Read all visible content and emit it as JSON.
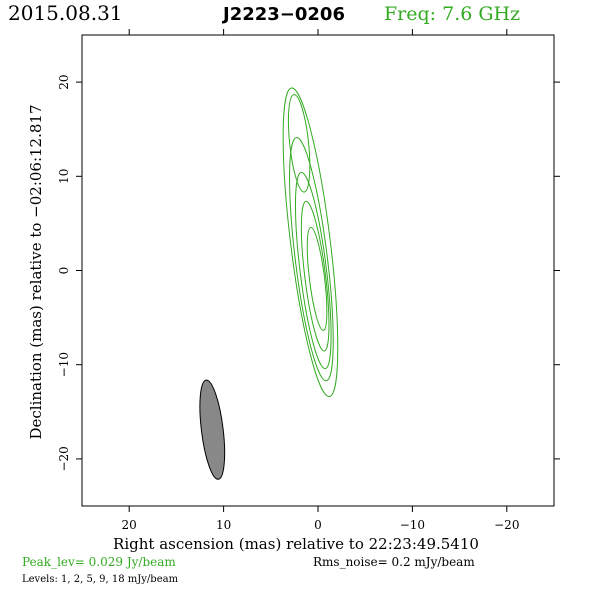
{
  "header": {
    "date": "2015.08.31",
    "source": "J2223−0206",
    "frequency": "Freq:  7.6  GHz"
  },
  "footer": {
    "peak_level": "Peak_lev=   0.029  Jy/beam",
    "rms_noise": "Rms_noise=    0.2  mJy/beam",
    "levels": "Levels:    1,    2,    5,    9,   18  mJy/beam"
  },
  "colors": {
    "contour": "#33aa22",
    "beam_fill": "#888888",
    "axis": "#000000"
  },
  "chart_data": {
    "type": "contour",
    "title": "J2223−0206",
    "xlabel": "Right ascension (mas) relative to 22:23:49.5410",
    "ylabel": "Declination (mas) relative to −02:06:12.817",
    "xlim": [
      25,
      -25
    ],
    "ylim": [
      -25,
      25
    ],
    "x_ticks": [
      20,
      10,
      0,
      -10,
      -20
    ],
    "y_ticks": [
      20,
      10,
      0,
      -10,
      -20
    ],
    "x_tick_labels": [
      "20",
      "10",
      "0",
      "−10",
      "−20"
    ],
    "y_tick_labels": [
      "20",
      "10",
      "0",
      "−10",
      "−20"
    ],
    "peak_jy_per_beam": 0.029,
    "rms_noise_mjy_per_beam": 0.2,
    "levels_mjy_per_beam": [
      1,
      2,
      5,
      9,
      18
    ],
    "contours": [
      {
        "level": 1,
        "cx": 0.8,
        "cy": 3.0,
        "a": 2.1,
        "b": 16.5,
        "angle_deg": -7
      },
      {
        "level": 2,
        "cx": 0.7,
        "cy": 1.2,
        "a": 1.7,
        "b": 13.0,
        "angle_deg": -7
      },
      {
        "level": 5,
        "cx": 0.5,
        "cy": 0.0,
        "a": 1.4,
        "b": 10.5,
        "angle_deg": -7
      },
      {
        "level": 9,
        "cx": 0.3,
        "cy": -0.6,
        "a": 1.1,
        "b": 8.0,
        "angle_deg": -7
      },
      {
        "level": 18,
        "cx": 0.1,
        "cy": -0.9,
        "a": 0.8,
        "b": 5.5,
        "angle_deg": -7
      },
      {
        "level": 1,
        "cx": 2.0,
        "cy": 13.5,
        "a": 1.0,
        "b": 5.2,
        "angle_deg": -6
      }
    ],
    "beam": {
      "cx": 11.2,
      "cy": -16.9,
      "bmaj_mas": 10.6,
      "bmin_mas": 2.3,
      "pa_deg": -7
    }
  }
}
